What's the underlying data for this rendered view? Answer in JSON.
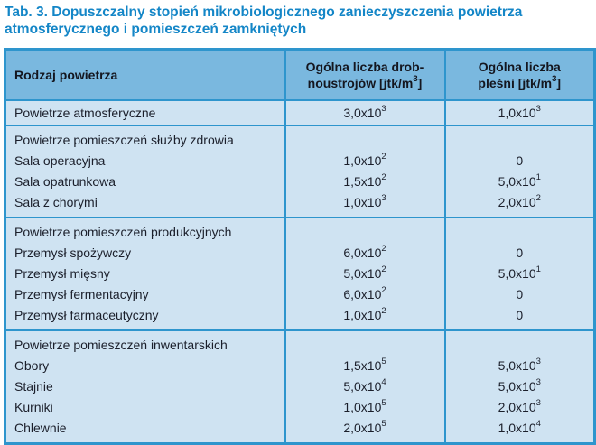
{
  "title": "Tab. 3. Dopuszczalny stopień mikrobiologicznego zanieczyszczenia powietrza atmosferycznego i pomieszczeń zamkniętych",
  "colors": {
    "title_text": "#1486c7",
    "table_border": "#2e95cd",
    "header_bg": "#7ab8df",
    "body_bg": "#cfe3f2",
    "body_text": "#1b1f2b"
  },
  "columns": {
    "air_type": {
      "label": "Rodzaj powietrza"
    },
    "microbes": {
      "pre": "Ogólna liczba drob-noustrojów [jtk/m",
      "sup": "3",
      "post": "]"
    },
    "molds": {
      "pre": "Ogólna liczba pleśni [jtk/m",
      "sup": "3",
      "post": "]"
    }
  },
  "atmospheric": {
    "label": "Powietrze atmosferyczne",
    "microbes": {
      "b": "3,0x10",
      "e": "3"
    },
    "molds": {
      "b": "1,0x10",
      "e": "3"
    }
  },
  "sections": [
    {
      "group": "Powietrze pomieszczeń służby zdrowia",
      "items": [
        {
          "label": "Sala operacyjna",
          "microbes": {
            "b": "1,0x10",
            "e": "2"
          },
          "molds": {
            "b": "0",
            "e": ""
          }
        },
        {
          "label": "Sala opatrunkowa",
          "microbes": {
            "b": "1,5x10",
            "e": "2"
          },
          "molds": {
            "b": "5,0x10",
            "e": "1"
          }
        },
        {
          "label": "Sala z chorymi",
          "microbes": {
            "b": "1,0x10",
            "e": "3"
          },
          "molds": {
            "b": "2,0x10",
            "e": "2"
          }
        }
      ]
    },
    {
      "group": "Powietrze pomieszczeń produkcyjnych",
      "items": [
        {
          "label": "Przemysł spożywczy",
          "microbes": {
            "b": "6,0x10",
            "e": "2"
          },
          "molds": {
            "b": "0",
            "e": ""
          }
        },
        {
          "label": "Przemysł mięsny",
          "microbes": {
            "b": "5,0x10",
            "e": "2"
          },
          "molds": {
            "b": "5,0x10",
            "e": "1"
          }
        },
        {
          "label": "Przemysł fermentacyjny",
          "microbes": {
            "b": "6,0x10",
            "e": "2"
          },
          "molds": {
            "b": "0",
            "e": ""
          }
        },
        {
          "label": "Przemysł farmaceutyczny",
          "microbes": {
            "b": "1,0x10",
            "e": "2"
          },
          "molds": {
            "b": "0",
            "e": ""
          }
        }
      ]
    },
    {
      "group": "Powietrze pomieszczeń inwentarskich",
      "items": [
        {
          "label": "Obory",
          "microbes": {
            "b": "1,5x10",
            "e": "5"
          },
          "molds": {
            "b": "5,0x10",
            "e": "3"
          }
        },
        {
          "label": "Stajnie",
          "microbes": {
            "b": "5,0x10",
            "e": "4"
          },
          "molds": {
            "b": "5,0x10",
            "e": "3"
          }
        },
        {
          "label": "Kurniki",
          "microbes": {
            "b": "1,0x10",
            "e": "5"
          },
          "molds": {
            "b": "2,0x10",
            "e": "3"
          }
        },
        {
          "label": "Chlewnie",
          "microbes": {
            "b": "2,0x10",
            "e": "5"
          },
          "molds": {
            "b": "1,0x10",
            "e": "4"
          }
        }
      ]
    }
  ]
}
